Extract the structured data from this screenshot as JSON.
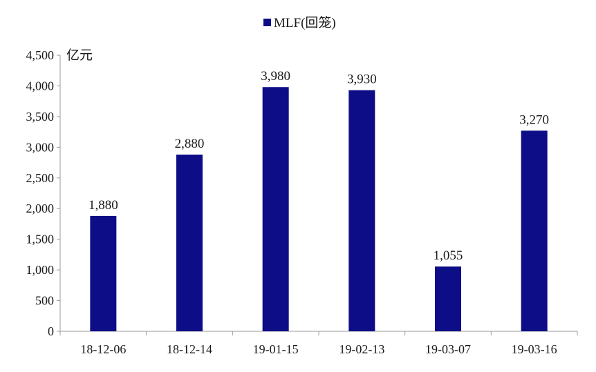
{
  "chart_data": {
    "type": "bar",
    "categories": [
      "18-12-06",
      "18-12-14",
      "19-01-15",
      "19-02-13",
      "19-03-07",
      "19-03-16"
    ],
    "series": [
      {
        "name": "MLF(回笼)",
        "values": [
          1880,
          2880,
          3980,
          3930,
          1055,
          3270
        ],
        "color": "#0d0d87"
      }
    ],
    "data_labels": [
      "1,880",
      "2,880",
      "3,980",
      "3,930",
      "1,055",
      "3,270"
    ],
    "ylabel": "亿元",
    "xlabel": "",
    "ylim": [
      0,
      4500
    ],
    "yticks": [
      0,
      500,
      1000,
      1500,
      2000,
      2500,
      3000,
      3500,
      4000,
      4500
    ],
    "ytick_labels": [
      "0",
      "500",
      "1,000",
      "1,500",
      "2,000",
      "2,500",
      "3,000",
      "3,500",
      "4,000",
      "4,500"
    ],
    "grid": false,
    "legend_position": "top-center"
  }
}
